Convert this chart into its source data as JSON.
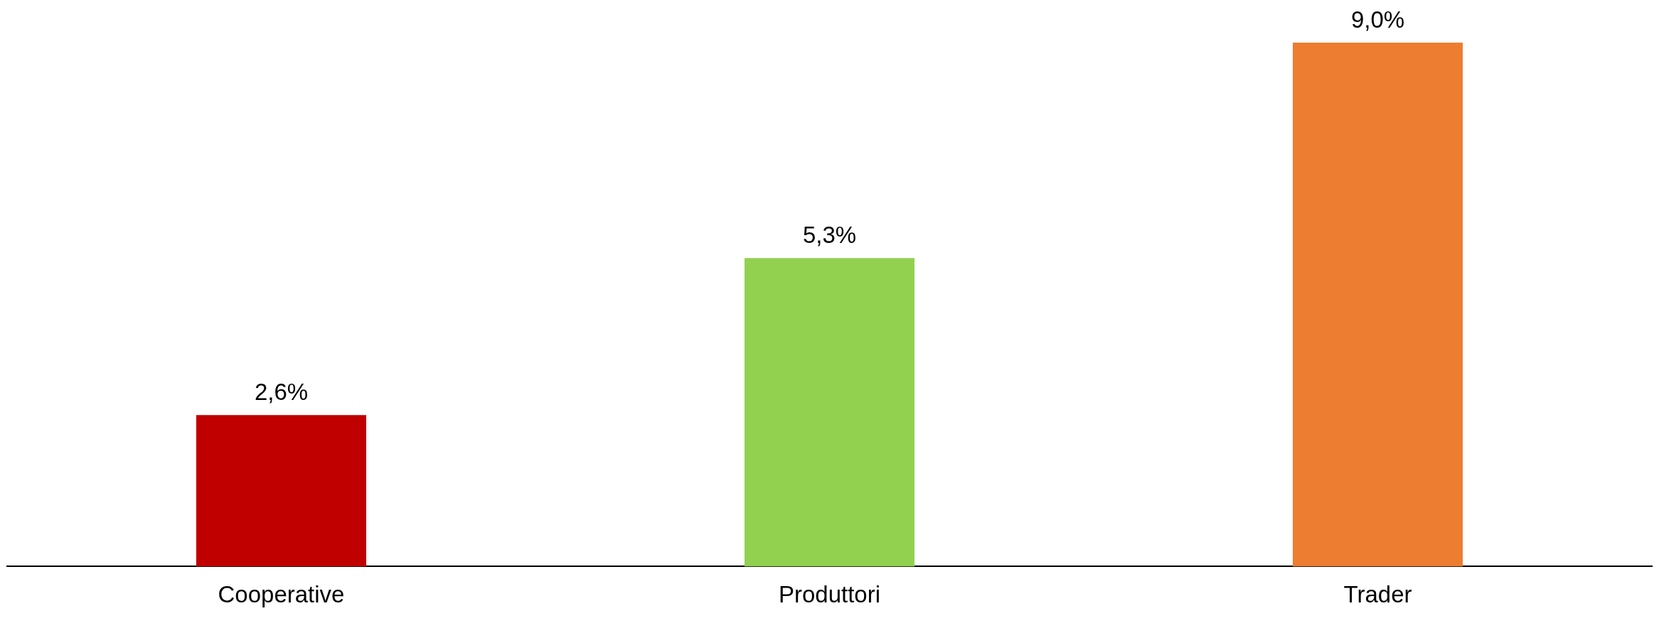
{
  "chart_data": {
    "type": "bar",
    "categories": [
      "Cooperative",
      "Produttori",
      "Trader"
    ],
    "values": [
      2.6,
      5.3,
      9.0
    ],
    "colors": [
      "#c00000",
      "#92d050",
      "#ed7d31"
    ],
    "value_labels": [
      "2,6%",
      "5,3%",
      "9,0%"
    ],
    "grid": false,
    "legend": false
  }
}
